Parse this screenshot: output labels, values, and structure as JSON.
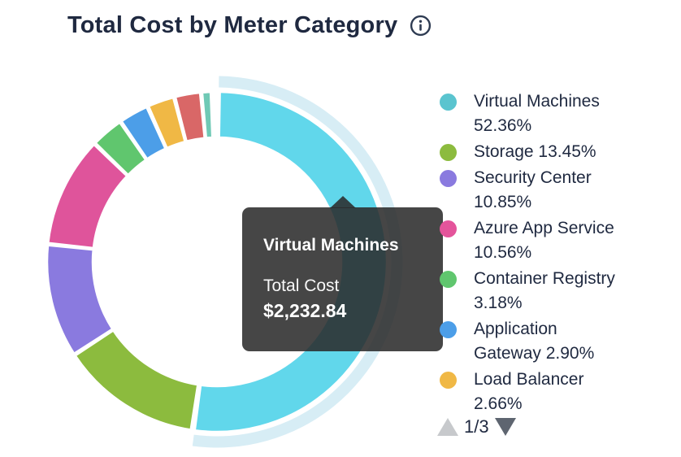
{
  "header": {
    "title": "Total Cost by Meter Category"
  },
  "chart_data": {
    "type": "pie",
    "subtype": "donut",
    "title": "Total Cost by Meter Category",
    "value_unit": "percent_of_total_cost",
    "start_angle_deg": 0,
    "clockwise": true,
    "legend_position": "right",
    "hovered_segment": "Virtual Machines",
    "hovered_segment_total_cost": "$2,232.84",
    "segments": [
      {
        "label": "Virtual Machines",
        "pct": 52.36,
        "color": "#61D7EB",
        "base_color": "#5AC4CF",
        "highlighted": true
      },
      {
        "label": "Storage",
        "pct": 13.45,
        "color": "#8CBB3E"
      },
      {
        "label": "Security Center",
        "pct": 10.85,
        "color": "#8A7ADF"
      },
      {
        "label": "Azure App Service",
        "pct": 10.56,
        "color": "#DF549B"
      },
      {
        "label": "Container Registry",
        "pct": 3.18,
        "color": "#60C66E"
      },
      {
        "label": "Application Gateway",
        "pct": 2.9,
        "color": "#4C9EE8"
      },
      {
        "label": "Load Balancer",
        "pct": 2.66,
        "color": "#F0B845"
      },
      {
        "label": "",
        "pct": 2.55,
        "color": "#D96767"
      },
      {
        "label": "",
        "pct": 1.0,
        "color": "#6FC9B5"
      }
    ],
    "highlight_band_color": "#D7EDF5"
  },
  "tooltip": {
    "title": "Virtual Machines",
    "label": "Total Cost",
    "value": "$2,232.84"
  },
  "legend": {
    "items": [
      {
        "color": "#5AC4CF",
        "label": "Virtual Machines",
        "pct_text": "52.36%",
        "lines": [
          "Virtual Machines",
          "52.36%"
        ]
      },
      {
        "color": "#8CBB3E",
        "label": "Storage",
        "pct_text": "13.45%",
        "lines": [
          "Storage 13.45%"
        ]
      },
      {
        "color": "#8A7ADF",
        "label": "Security Center",
        "pct_text": "10.85%",
        "lines": [
          "Security Center",
          "10.85%"
        ]
      },
      {
        "color": "#E4549B",
        "label": "Azure App Service",
        "pct_text": "10.56%",
        "lines": [
          "Azure App Service",
          "10.56%"
        ]
      },
      {
        "color": "#60C66E",
        "label": "Container Registry",
        "pct_text": "3.18%",
        "lines": [
          "Container Registry",
          "3.18%"
        ]
      },
      {
        "color": "#4C9EE8",
        "label": "Application Gateway",
        "pct_text": "2.90%",
        "lines": [
          "Application",
          "Gateway 2.90%"
        ]
      },
      {
        "color": "#F0B845",
        "label": "Load Balancer",
        "pct_text": "2.66%",
        "lines": [
          "Load Balancer",
          "2.66%"
        ]
      }
    ],
    "pagination": {
      "current_page": 1,
      "total_pages": 3,
      "label": "1/3"
    }
  }
}
